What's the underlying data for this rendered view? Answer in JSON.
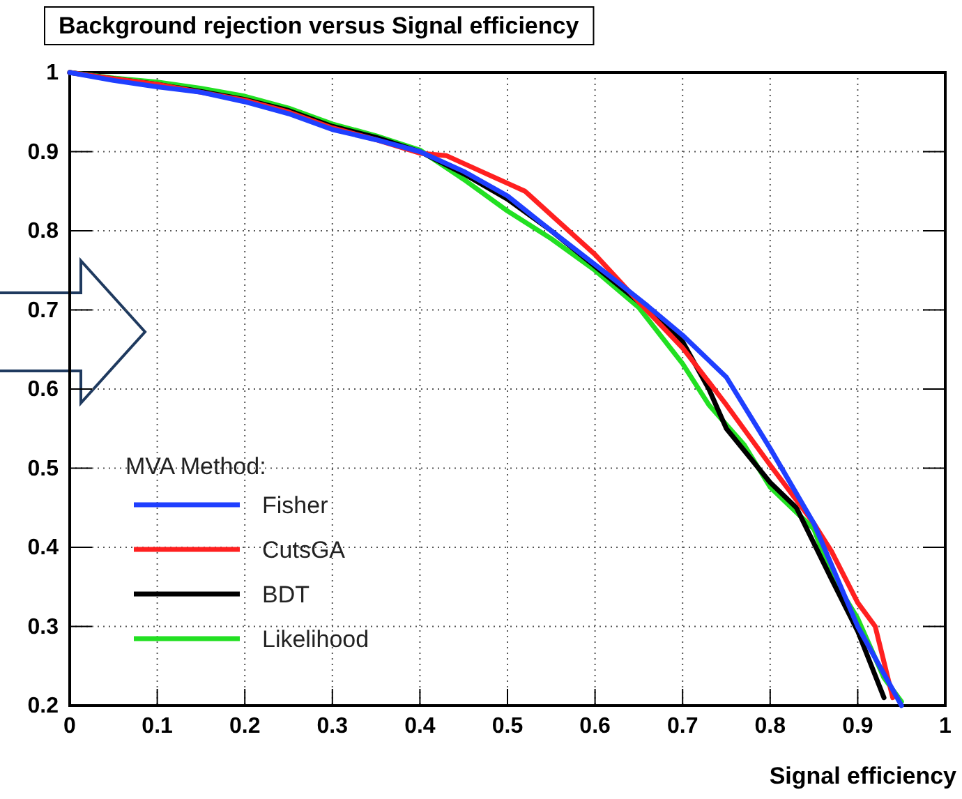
{
  "chart_data": {
    "type": "line",
    "title": "Background rejection versus Signal efficiency",
    "xlabel": "Signal efficiency",
    "legend_title": "MVA Method:",
    "legend": "bottom left",
    "grid": true,
    "line_style": "solid",
    "xlim": [
      0,
      1
    ],
    "ylim": [
      0.2,
      1
    ],
    "xticks": [
      0,
      0.1,
      0.2,
      0.3,
      0.4,
      0.5,
      0.6,
      0.7,
      0.8,
      0.9,
      1
    ],
    "yticks": [
      0.2,
      0.3,
      0.4,
      0.5,
      0.6,
      0.7,
      0.8,
      0.9,
      1
    ],
    "series": [
      {
        "name": "Fisher",
        "color": "#1f3fff",
        "x": [
          0,
          0.05,
          0.1,
          0.15,
          0.2,
          0.25,
          0.3,
          0.35,
          0.4,
          0.45,
          0.5,
          0.55,
          0.62,
          0.66,
          0.7,
          0.75,
          0.8,
          0.85,
          0.9,
          0.95
        ],
        "values": [
          1,
          0.99,
          0.982,
          0.975,
          0.963,
          0.948,
          0.928,
          0.915,
          0.9,
          0.875,
          0.844,
          0.8,
          0.74,
          0.705,
          0.668,
          0.615,
          0.525,
          0.43,
          0.3,
          0.2
        ]
      },
      {
        "name": "CutsGA",
        "color": "#ff2020",
        "x": [
          0,
          0.05,
          0.1,
          0.15,
          0.2,
          0.25,
          0.3,
          0.35,
          0.4,
          0.43,
          0.47,
          0.5,
          0.52,
          0.55,
          0.6,
          0.65,
          0.7,
          0.75,
          0.8,
          0.85,
          0.87,
          0.9,
          0.92,
          0.94
        ],
        "values": [
          1,
          0.992,
          0.985,
          0.975,
          0.965,
          0.95,
          0.93,
          0.915,
          0.898,
          0.895,
          0.875,
          0.86,
          0.85,
          0.82,
          0.77,
          0.71,
          0.652,
          0.58,
          0.504,
          0.43,
          0.395,
          0.33,
          0.3,
          0.21
        ]
      },
      {
        "name": "BDT",
        "color": "#000000",
        "x": [
          0,
          0.05,
          0.1,
          0.15,
          0.2,
          0.25,
          0.3,
          0.35,
          0.4,
          0.45,
          0.5,
          0.55,
          0.6,
          0.65,
          0.7,
          0.73,
          0.75,
          0.8,
          0.83,
          0.87,
          0.9,
          0.93
        ],
        "values": [
          1,
          0.992,
          0.985,
          0.976,
          0.966,
          0.952,
          0.932,
          0.918,
          0.9,
          0.872,
          0.84,
          0.8,
          0.755,
          0.71,
          0.66,
          0.6,
          0.55,
          0.482,
          0.45,
          0.36,
          0.294,
          0.21
        ]
      },
      {
        "name": "Likelihood",
        "color": "#22e022",
        "x": [
          0,
          0.05,
          0.1,
          0.15,
          0.2,
          0.25,
          0.3,
          0.35,
          0.4,
          0.45,
          0.5,
          0.55,
          0.6,
          0.65,
          0.7,
          0.73,
          0.77,
          0.8,
          0.85,
          0.87,
          0.9,
          0.93,
          0.95
        ],
        "values": [
          1,
          0.993,
          0.988,
          0.98,
          0.97,
          0.955,
          0.935,
          0.92,
          0.902,
          0.865,
          0.825,
          0.79,
          0.75,
          0.703,
          0.632,
          0.58,
          0.53,
          0.476,
          0.423,
          0.365,
          0.31,
          0.235,
          0.205
        ]
      }
    ]
  }
}
